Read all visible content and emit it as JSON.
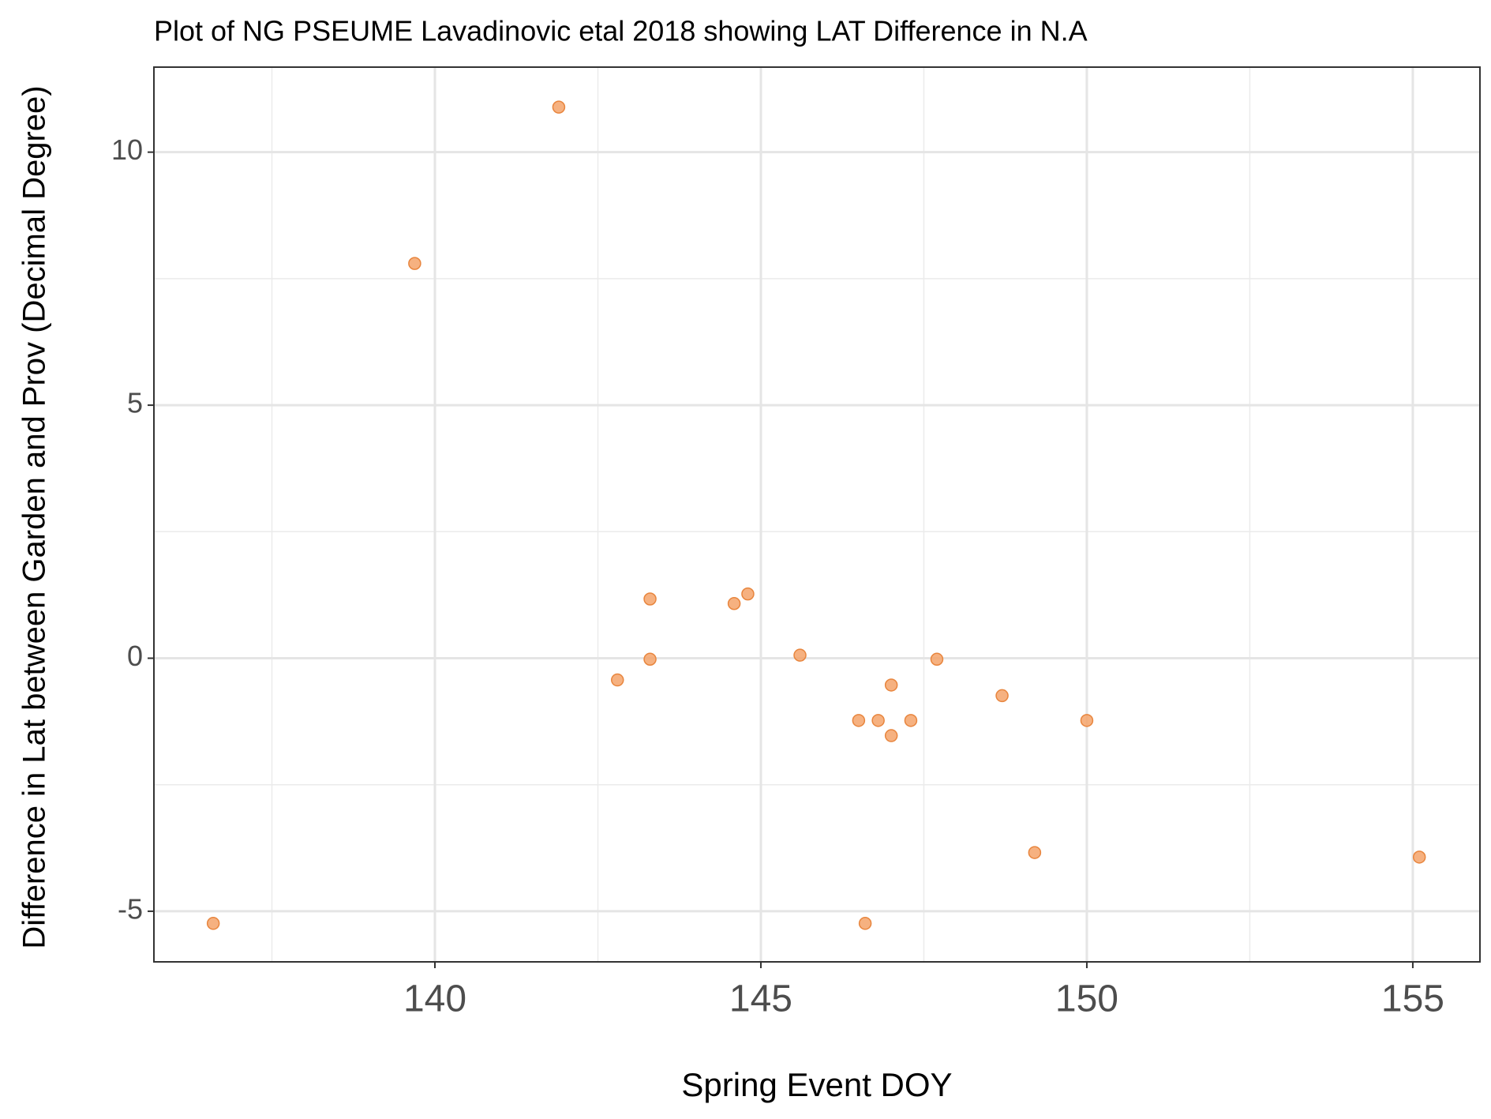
{
  "chart_data": {
    "type": "scatter",
    "title": "Plot of NG PSEUME Lavadinovic etal 2018 showing LAT Difference in N.A",
    "x_label": "Spring Event DOY",
    "y_label": "Difference in Lat between Garden and Prov (Decimal Degree)",
    "x": [
      136.6,
      139.69,
      141.9,
      142.8,
      143.3,
      143.3,
      144.59,
      144.8,
      145.6,
      146.5,
      146.6,
      146.8,
      147.0,
      147.0,
      147.3,
      147.7,
      148.7,
      149.2,
      150.0,
      155.1
    ],
    "values": [
      -5.24,
      7.8,
      10.89,
      -0.43,
      1.17,
      -0.02,
      1.08,
      1.27,
      0.06,
      -1.23,
      -5.24,
      -1.23,
      -0.53,
      -1.53,
      -1.23,
      -0.02,
      -0.74,
      -3.84,
      -1.23,
      -3.93
    ],
    "color": "#f5a36a",
    "xlim": [
      135.69,
      156.03
    ],
    "ylim": [
      -6.0,
      11.68
    ],
    "xticks": [
      140,
      145,
      150,
      155
    ],
    "yticks": [
      -5,
      0,
      5,
      10
    ],
    "xminor": [
      137.5,
      142.5,
      147.5,
      152.5
    ],
    "yminor": [
      -2.5,
      2.5,
      7.5
    ],
    "grid": true
  }
}
